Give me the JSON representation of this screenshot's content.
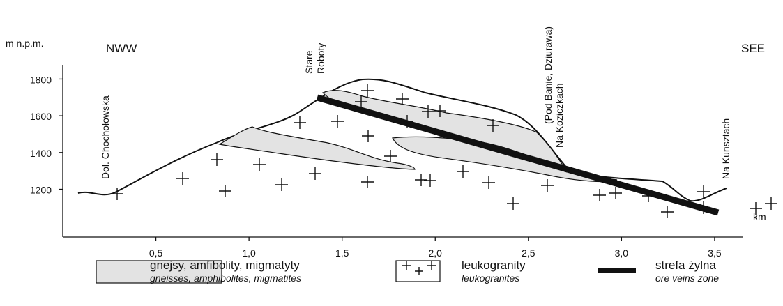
{
  "y_axis_label": "m n.p.m.",
  "x_axis_label": "km",
  "ylim": [
    940,
    1870
  ],
  "yticks": [
    1200,
    1400,
    1600,
    1800
  ],
  "xlim": [
    0,
    3.65
  ],
  "xticks": [
    {
      "value": 0.5,
      "label": "0,5"
    },
    {
      "value": 1.0,
      "label": "1,0"
    },
    {
      "value": 1.5,
      "label": "1,5"
    },
    {
      "value": 2.0,
      "label": "2,0"
    },
    {
      "value": 2.5,
      "label": "2,5"
    },
    {
      "value": 3.0,
      "label": "3,0"
    },
    {
      "value": 3.5,
      "label": "3,5"
    }
  ],
  "directions": {
    "left": "NWW",
    "right": "SEE"
  },
  "locations": [
    "Dol. Chochołowska",
    "Stare",
    "Roboty",
    "(Pod Banie, Dziurawa)",
    "Na Koziczkach",
    "Na Kunsztach"
  ],
  "legend": [
    {
      "label": "gnejsy, amfibolity, migmatyty",
      "sublabel": "gneisses, amphibolites, migmatites"
    },
    {
      "label": "leukogranity",
      "sublabel": "leukogranites"
    },
    {
      "label": "strefa żylna",
      "sublabel": "ore veins zone"
    }
  ]
}
